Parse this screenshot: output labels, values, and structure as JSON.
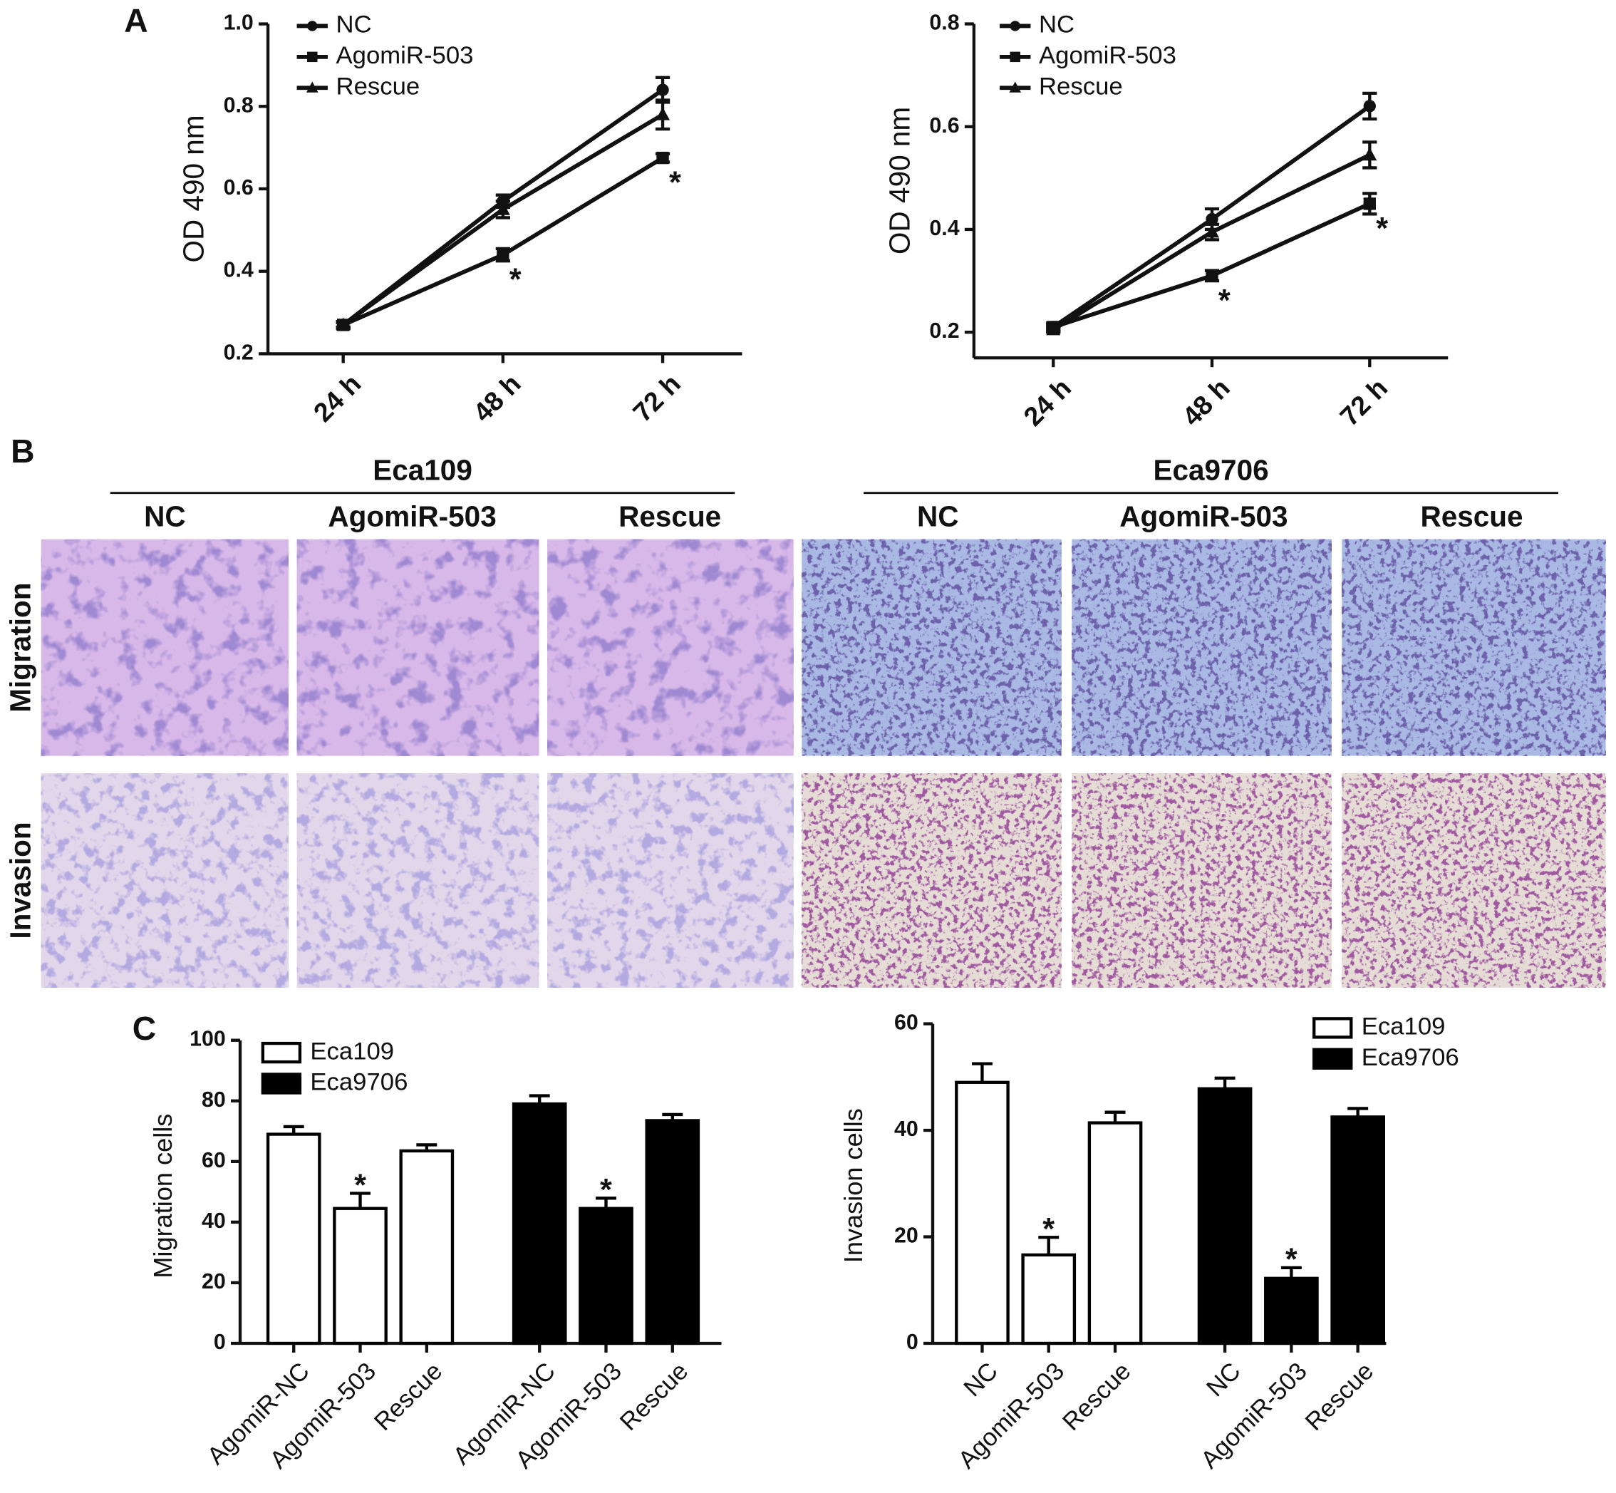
{
  "panel_labels": [
    "A",
    "B",
    "C"
  ],
  "panel_b": {
    "groups": [
      {
        "name": "Eca109",
        "columns": [
          "NC",
          "AgomiR-503",
          "Rescue"
        ]
      },
      {
        "name": "Eca9706",
        "columns": [
          "NC",
          "AgomiR-503",
          "Rescue"
        ]
      }
    ],
    "rows": [
      "Migration",
      "Invasion"
    ]
  },
  "chart_data": [
    {
      "type": "line",
      "categories": [
        "24 h",
        "48 h",
        "72 h"
      ],
      "y_label": "OD 490 nm",
      "ylim": [
        0.2,
        1.0
      ],
      "yticks": [
        0.2,
        0.4,
        0.6,
        0.8,
        {
          "value": 1,
          "label": "1.0"
        }
      ],
      "series": [
        {
          "name": "NC",
          "color": "#111111",
          "marker": "circle",
          "values": [
            0.27,
            0.57,
            0.84
          ],
          "errors": [
            0.008,
            0.015,
            0.03
          ]
        },
        {
          "name": "AgomiR-503",
          "color": "#111111",
          "marker": "square",
          "values": [
            0.27,
            0.44,
            0.675
          ],
          "errors": [
            0.005,
            0.015,
            0.01
          ],
          "annotations": [
            null,
            "*",
            "*"
          ]
        },
        {
          "name": "Rescue",
          "color": "#111111",
          "marker": "triangle",
          "values": [
            0.27,
            0.55,
            0.78
          ],
          "errors": [
            0.008,
            0.02,
            0.035
          ]
        }
      ]
    },
    {
      "type": "line",
      "categories": [
        "24 h",
        "48 h",
        "72 h"
      ],
      "y_label": "OD 490 nm",
      "ylim": [
        0.15,
        0.8
      ],
      "yticks": [
        0.2,
        0.4,
        0.6,
        0.8
      ],
      "series": [
        {
          "name": "NC",
          "color": "#111111",
          "marker": "circle",
          "values": [
            0.21,
            0.42,
            0.64
          ],
          "errors": [
            0.008,
            0.02,
            0.025
          ]
        },
        {
          "name": "AgomiR-503",
          "color": "#111111",
          "marker": "square",
          "values": [
            0.21,
            0.31,
            0.45
          ],
          "errors": [
            0.005,
            0.01,
            0.02
          ],
          "annotations": [
            null,
            "*",
            "*"
          ]
        },
        {
          "name": "Rescue",
          "color": "#111111",
          "marker": "triangle",
          "values": [
            0.205,
            0.395,
            0.545
          ],
          "errors": [
            0.005,
            0.015,
            0.025
          ]
        }
      ]
    },
    {
      "type": "bar",
      "categories": [
        "AgomiR-NC",
        "AgomiR-503",
        "Rescue",
        "AgomiR-NC",
        "AgomiR-503",
        "Rescue"
      ],
      "y_label": "Migration cells",
      "ylim": [
        0,
        100
      ],
      "yticks": [
        0,
        20,
        40,
        60,
        80,
        100
      ],
      "series": [
        {
          "name": "Eca109",
          "color": "#ffffff",
          "values": [
            69,
            44.5,
            63.5,
            null,
            null,
            null
          ],
          "errors": [
            2.5,
            5,
            2,
            null,
            null,
            null
          ],
          "annotations": [
            null,
            "*",
            null,
            null,
            null,
            null
          ]
        },
        {
          "name": "Eca9706",
          "color": "#000000",
          "values": [
            null,
            null,
            null,
            79,
            44.5,
            73.5
          ],
          "errors": [
            null,
            null,
            null,
            2.7,
            3.4,
            2
          ],
          "annotations": [
            null,
            null,
            null,
            null,
            "*",
            null
          ]
        }
      ]
    },
    {
      "type": "bar",
      "categories": [
        "NC",
        "AgomiR-503",
        "Rescue",
        "NC",
        "AgomiR-503",
        "Rescue"
      ],
      "y_label": "Invasion cells",
      "ylim": [
        0,
        60
      ],
      "yticks": [
        0,
        20,
        40,
        60
      ],
      "series": [
        {
          "name": "Eca109",
          "color": "#ffffff",
          "values": [
            49,
            16.6,
            41.4,
            null,
            null,
            null
          ],
          "errors": [
            3.5,
            3.3,
            2,
            null,
            null,
            null
          ],
          "annotations": [
            null,
            "*",
            null,
            null,
            null,
            null
          ]
        },
        {
          "name": "Eca9706",
          "color": "#000000",
          "values": [
            null,
            null,
            null,
            47.8,
            12.2,
            42.5
          ],
          "errors": [
            null,
            null,
            null,
            2,
            2,
            1.6
          ],
          "annotations": [
            null,
            null,
            null,
            null,
            "*",
            null
          ]
        }
      ]
    }
  ]
}
